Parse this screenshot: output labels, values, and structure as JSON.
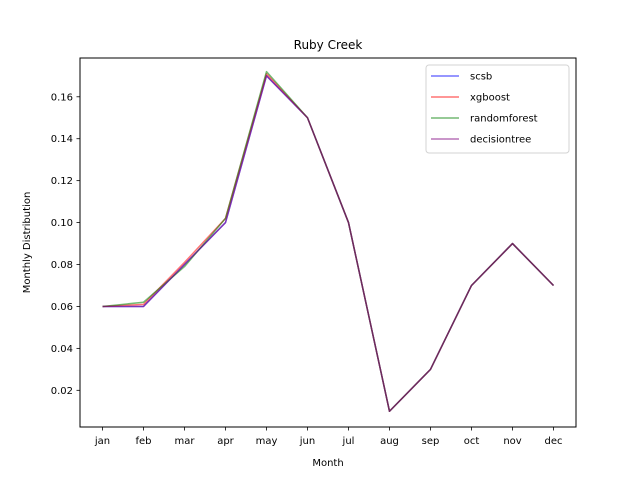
{
  "chart_data": {
    "type": "line",
    "title": "Ruby Creek",
    "xlabel": "Month",
    "ylabel": "Monthly Distribution",
    "categories": [
      "jan",
      "feb",
      "mar",
      "apr",
      "may",
      "jun",
      "jul",
      "aug",
      "sep",
      "oct",
      "nov",
      "dec"
    ],
    "ylim": [
      0.0025,
      0.1785
    ],
    "yticks": [
      0.02,
      0.04,
      0.06,
      0.08,
      0.1,
      0.12,
      0.14,
      0.16
    ],
    "ytick_labels": [
      "0.02",
      "0.04",
      "0.06",
      "0.08",
      "0.10",
      "0.12",
      "0.14",
      "0.16"
    ],
    "grid": false,
    "legend_position": "top-right",
    "series": [
      {
        "name": "scsb",
        "color": "#0000ff",
        "values": [
          0.06,
          0.06,
          0.08,
          0.1,
          0.17,
          0.15,
          0.1,
          0.01,
          0.03,
          0.07,
          0.09,
          0.07
        ]
      },
      {
        "name": "xgboost",
        "color": "#ff0000",
        "values": [
          0.06,
          0.061,
          0.081,
          0.102,
          0.171,
          0.15,
          0.1,
          0.01,
          0.03,
          0.07,
          0.09,
          0.07
        ]
      },
      {
        "name": "randomforest",
        "color": "#008000",
        "values": [
          0.06,
          0.062,
          0.079,
          0.102,
          0.172,
          0.15,
          0.1,
          0.01,
          0.03,
          0.07,
          0.09,
          0.07
        ]
      },
      {
        "name": "decisiontree",
        "color": "#800080",
        "values": [
          0.06,
          0.06,
          0.08,
          0.1,
          0.17,
          0.15,
          0.1,
          0.01,
          0.03,
          0.07,
          0.09,
          0.07
        ]
      }
    ]
  }
}
